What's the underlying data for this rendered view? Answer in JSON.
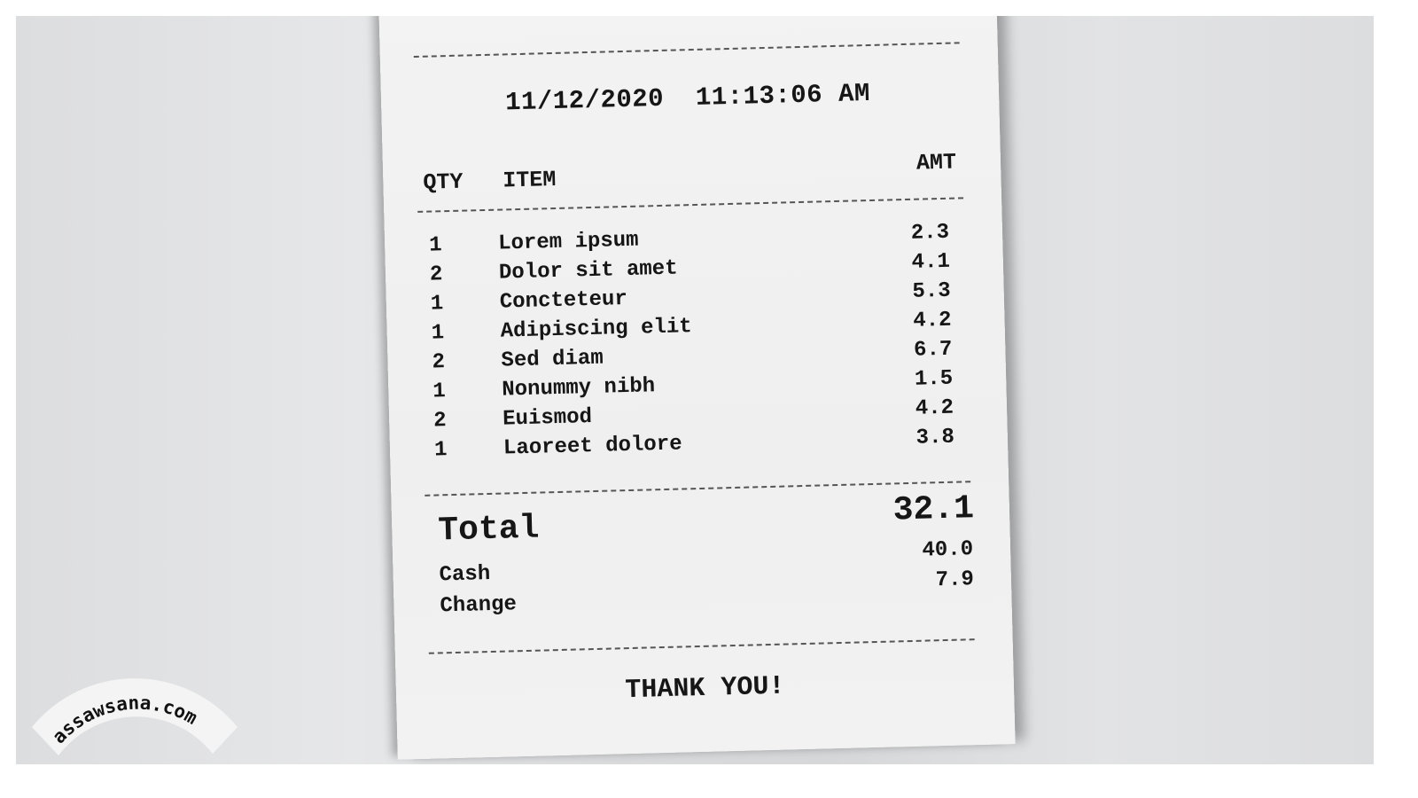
{
  "receipt": {
    "date": "11/12/2020",
    "time": "11:13:06 AM",
    "headers": {
      "qty": "QTY",
      "item": "ITEM",
      "amt": "AMT"
    },
    "items": [
      {
        "qty": "1",
        "item": "Lorem ipsum",
        "amt": "2.3"
      },
      {
        "qty": "2",
        "item": "Dolor sit amet",
        "amt": "4.1"
      },
      {
        "qty": "1",
        "item": "Concteteur",
        "amt": "5.3"
      },
      {
        "qty": "1",
        "item": "Adipiscing elit",
        "amt": "4.2"
      },
      {
        "qty": "2",
        "item": "Sed diam",
        "amt": "6.7"
      },
      {
        "qty": "1",
        "item": "Nonummy nibh",
        "amt": "1.5"
      },
      {
        "qty": "2",
        "item": "Euismod",
        "amt": "4.2"
      },
      {
        "qty": "1",
        "item": "Laoreet dolore",
        "amt": "3.8"
      }
    ],
    "total_label": "Total",
    "total_value": "32.1",
    "cash_label": "Cash",
    "cash_value": "40.0",
    "change_label": "Change",
    "change_value": "7.9",
    "footer": "THANK YOU!"
  },
  "watermark": "assawsana.com"
}
